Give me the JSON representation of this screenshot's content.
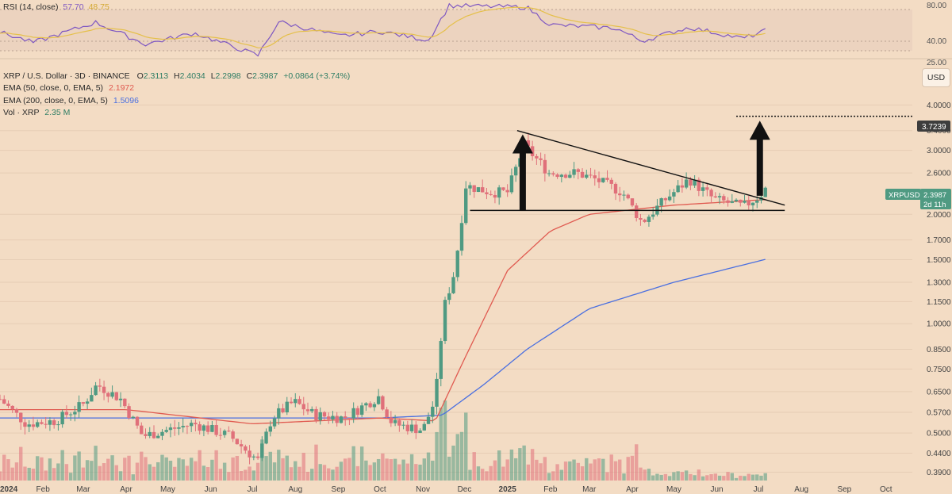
{
  "rsi_panel": {
    "title": "RSI (14, close)",
    "rsi_value": "57.70",
    "ma_value": "48.75",
    "levels": [
      "80.00",
      "40.00",
      "25.00"
    ],
    "color_rsi": "#7e57c2",
    "color_ma": "#e5c04a"
  },
  "legend": {
    "symbol_line": "XRP / U.S. Dollar · 3D · BINANCE",
    "o_label": "O",
    "o_value": "2.3113",
    "h_label": "H",
    "h_value": "2.4034",
    "l_label": "L",
    "l_value": "2.2998",
    "c_label": "C",
    "c_value": "2.3987",
    "change": "+0.0864 (+3.74%)",
    "ema50_label": "EMA (50, close, 0, EMA, 5)",
    "ema50_value": "2.1972",
    "ema200_label": "EMA (200, close, 0, EMA, 5)",
    "ema200_value": "1.5096",
    "vol_label": "Vol · XRP",
    "vol_value": "2.35 M"
  },
  "currency_button": "USD",
  "price_tags": {
    "target": "3.7239",
    "symbol": "XRPUSD",
    "last": "2.3987",
    "countdown": "2d 11h"
  },
  "colors": {
    "up": "#4f9a82",
    "down": "#e0707a",
    "ema50": "#e05a50",
    "ema200": "#4a6fe0",
    "background": "#f3dcc4"
  },
  "chart_data": {
    "type": "candlestick",
    "y_scale": "log",
    "y_ticks": [
      "4.0000",
      "3.4000",
      "3.0000",
      "2.6000",
      "2.0000",
      "1.7000",
      "1.5000",
      "1.3000",
      "1.1500",
      "1.0000",
      "0.8500",
      "0.7500",
      "0.6500",
      "0.5700",
      "0.5000",
      "0.4400",
      "0.3900"
    ],
    "x_ticks": [
      "2024",
      "Feb",
      "Mar",
      "Apr",
      "May",
      "Jun",
      "Jul",
      "Aug",
      "Sep",
      "Oct",
      "Nov",
      "Dec",
      "2025",
      "Feb",
      "Mar",
      "Apr",
      "May",
      "Jun",
      "Jul",
      "Aug",
      "Sep",
      "Oct"
    ],
    "x_range": [
      "2024-01-01",
      "2025-10-20"
    ],
    "y_range": [
      0.37,
      4.3
    ],
    "anchors": [
      {
        "date": "2024-01-01",
        "close": 0.62
      },
      {
        "date": "2024-01-20",
        "close": 0.53
      },
      {
        "date": "2024-02-10",
        "close": 0.54
      },
      {
        "date": "2024-03-01",
        "close": 0.6
      },
      {
        "date": "2024-03-11",
        "close": 0.68
      },
      {
        "date": "2024-03-28",
        "close": 0.62
      },
      {
        "date": "2024-04-13",
        "close": 0.49
      },
      {
        "date": "2024-05-01",
        "close": 0.51
      },
      {
        "date": "2024-05-20",
        "close": 0.53
      },
      {
        "date": "2024-06-15",
        "close": 0.49
      },
      {
        "date": "2024-07-05",
        "close": 0.42
      },
      {
        "date": "2024-07-15",
        "close": 0.55
      },
      {
        "date": "2024-07-31",
        "close": 0.61
      },
      {
        "date": "2024-08-15",
        "close": 0.56
      },
      {
        "date": "2024-09-05",
        "close": 0.55
      },
      {
        "date": "2024-09-30",
        "close": 0.63
      },
      {
        "date": "2024-10-10",
        "close": 0.53
      },
      {
        "date": "2024-11-01",
        "close": 0.51
      },
      {
        "date": "2024-11-10",
        "close": 0.62
      },
      {
        "date": "2024-11-16",
        "close": 1.1
      },
      {
        "date": "2024-11-24",
        "close": 1.4
      },
      {
        "date": "2024-12-02",
        "close": 2.4
      },
      {
        "date": "2024-12-20",
        "close": 2.3
      },
      {
        "date": "2025-01-01",
        "close": 2.3
      },
      {
        "date": "2025-01-13",
        "close": 3.1
      },
      {
        "date": "2025-01-31",
        "close": 2.6
      },
      {
        "date": "2025-02-20",
        "close": 2.6
      },
      {
        "date": "2025-03-05",
        "close": 2.5
      },
      {
        "date": "2025-03-25",
        "close": 2.3
      },
      {
        "date": "2025-04-08",
        "close": 1.9
      },
      {
        "date": "2025-04-25",
        "close": 2.2
      },
      {
        "date": "2025-05-12",
        "close": 2.5
      },
      {
        "date": "2025-05-30",
        "close": 2.2
      },
      {
        "date": "2025-06-20",
        "close": 2.1
      },
      {
        "date": "2025-07-02",
        "close": 2.25
      },
      {
        "date": "2025-07-08",
        "close": 2.3987
      }
    ],
    "ema50_anchors": [
      {
        "date": "2024-01-01",
        "value": 0.58
      },
      {
        "date": "2024-04-01",
        "value": 0.58
      },
      {
        "date": "2024-07-01",
        "value": 0.53
      },
      {
        "date": "2024-10-01",
        "value": 0.55
      },
      {
        "date": "2024-11-10",
        "value": 0.54
      },
      {
        "date": "2024-12-01",
        "value": 0.8
      },
      {
        "date": "2025-01-01",
        "value": 1.4
      },
      {
        "date": "2025-02-01",
        "value": 1.8
      },
      {
        "date": "2025-03-01",
        "value": 2.0
      },
      {
        "date": "2025-05-01",
        "value": 2.12
      },
      {
        "date": "2025-07-08",
        "value": 2.1972
      }
    ],
    "ema200_anchors": [
      {
        "date": "2024-01-01",
        "value": 0.55
      },
      {
        "date": "2024-04-01",
        "value": 0.55
      },
      {
        "date": "2024-07-01",
        "value": 0.55
      },
      {
        "date": "2024-10-01",
        "value": 0.55
      },
      {
        "date": "2024-11-15",
        "value": 0.56
      },
      {
        "date": "2024-12-15",
        "value": 0.68
      },
      {
        "date": "2025-01-15",
        "value": 0.85
      },
      {
        "date": "2025-03-01",
        "value": 1.1
      },
      {
        "date": "2025-05-01",
        "value": 1.3
      },
      {
        "date": "2025-07-08",
        "value": 1.5096
      }
    ],
    "trendlines": {
      "descending": {
        "start": {
          "date": "2025-01-08",
          "price": 3.4
        },
        "end": {
          "date": "2025-07-20",
          "price": 2.12
        }
      },
      "support": {
        "start": {
          "date": "2024-12-05",
          "price": 2.05
        },
        "end": {
          "date": "2025-07-20",
          "price": 2.05
        }
      },
      "target_level": {
        "start": {
          "date": "2025-06-15",
          "price": 3.7239
        },
        "end": {
          "date": "2025-10-20",
          "price": 3.7239
        }
      }
    },
    "arrows": [
      {
        "date": "2025-01-12",
        "from": 2.05,
        "to": 3.32
      },
      {
        "date": "2025-07-02",
        "from": 2.25,
        "to": 3.62
      }
    ],
    "rsi_anchors": [
      {
        "date": "2024-01-01",
        "value": 55
      },
      {
        "date": "2024-01-25",
        "value": 42
      },
      {
        "date": "2024-03-10",
        "value": 67
      },
      {
        "date": "2024-04-15",
        "value": 40
      },
      {
        "date": "2024-05-20",
        "value": 54
      },
      {
        "date": "2024-07-05",
        "value": 26
      },
      {
        "date": "2024-07-20",
        "value": 68
      },
      {
        "date": "2024-09-01",
        "value": 50
      },
      {
        "date": "2024-10-01",
        "value": 56
      },
      {
        "date": "2024-11-05",
        "value": 45
      },
      {
        "date": "2024-11-20",
        "value": 88
      },
      {
        "date": "2025-01-15",
        "value": 86
      },
      {
        "date": "2025-02-01",
        "value": 64
      },
      {
        "date": "2025-03-20",
        "value": 60
      },
      {
        "date": "2025-04-08",
        "value": 44
      },
      {
        "date": "2025-05-12",
        "value": 61
      },
      {
        "date": "2025-06-20",
        "value": 47
      },
      {
        "date": "2025-07-08",
        "value": 57.7
      }
    ]
  }
}
